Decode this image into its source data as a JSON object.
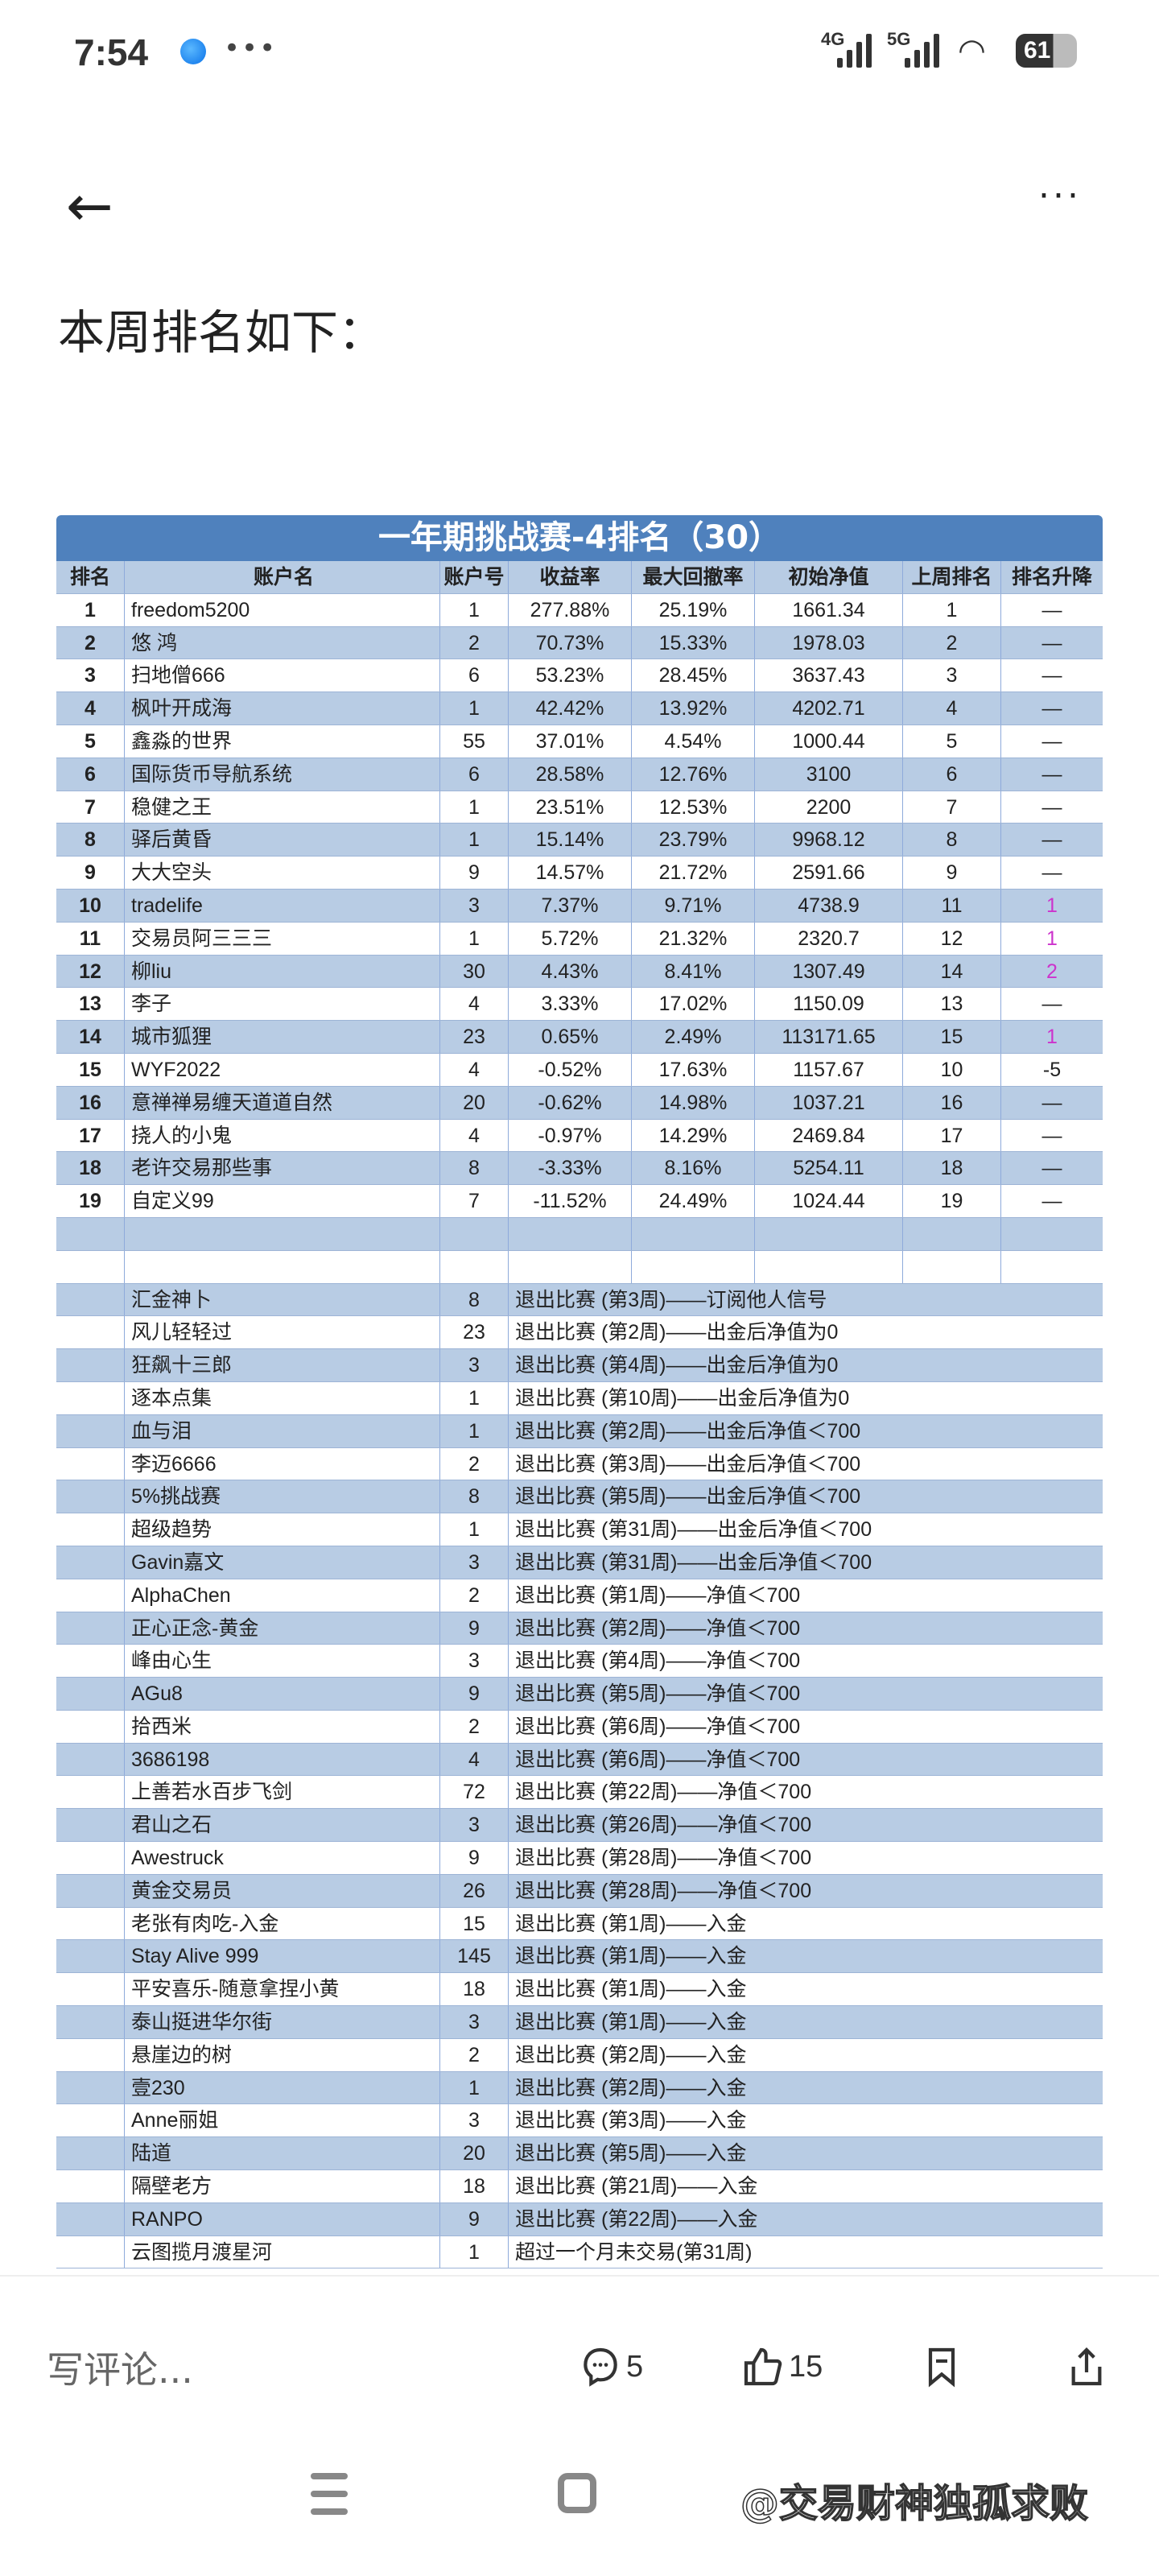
{
  "status_bar": {
    "time": "7:54",
    "sig1": "4G",
    "sig2": "5G",
    "battery": "61"
  },
  "heading": "本周排名如下：",
  "table": {
    "title": "一年期挑战赛-4排名（30）",
    "headers": [
      "排名",
      "账户名",
      "账户号",
      "收益率",
      "最大回撤率",
      "初始净值",
      "上周排名",
      "排名升降"
    ],
    "rows": [
      [
        "1",
        "freedom5200",
        "1",
        "277.88%",
        "25.19%",
        "1661.34",
        "1",
        "—"
      ],
      [
        "2",
        "悠 鸿",
        "2",
        "70.73%",
        "15.33%",
        "1978.03",
        "2",
        "—"
      ],
      [
        "3",
        "扫地僧666",
        "6",
        "53.23%",
        "28.45%",
        "3637.43",
        "3",
        "—"
      ],
      [
        "4",
        "枫叶开成海",
        "1",
        "42.42%",
        "13.92%",
        "4202.71",
        "4",
        "—"
      ],
      [
        "5",
        "鑫淼的世界",
        "55",
        "37.01%",
        "4.54%",
        "1000.44",
        "5",
        "—"
      ],
      [
        "6",
        "国际货币导航系统",
        "6",
        "28.58%",
        "12.76%",
        "3100",
        "6",
        "—"
      ],
      [
        "7",
        "稳健之王",
        "1",
        "23.51%",
        "12.53%",
        "2200",
        "7",
        "—"
      ],
      [
        "8",
        "驿后黄昏",
        "1",
        "15.14%",
        "23.79%",
        "9968.12",
        "8",
        "—"
      ],
      [
        "9",
        "大大空头",
        "9",
        "14.57%",
        "21.72%",
        "2591.66",
        "9",
        "—"
      ],
      [
        "10",
        "tradelife",
        "3",
        "7.37%",
        "9.71%",
        "4738.9",
        "11",
        "1"
      ],
      [
        "11",
        "交易员阿三三三",
        "1",
        "5.72%",
        "21.32%",
        "2320.7",
        "12",
        "1"
      ],
      [
        "12",
        "柳liu",
        "30",
        "4.43%",
        "8.41%",
        "1307.49",
        "14",
        "2"
      ],
      [
        "13",
        "李子",
        "4",
        "3.33%",
        "17.02%",
        "1150.09",
        "13",
        "—"
      ],
      [
        "14",
        "城市狐狸",
        "23",
        "0.65%",
        "2.49%",
        "113171.65",
        "15",
        "1"
      ],
      [
        "15",
        "WYF2022",
        "4",
        "-0.52%",
        "17.63%",
        "1157.67",
        "10",
        "-5"
      ],
      [
        "16",
        "意禅禅易缠天道道自然",
        "20",
        "-0.62%",
        "14.98%",
        "1037.21",
        "16",
        "—"
      ],
      [
        "17",
        "挠人的小鬼",
        "4",
        "-0.97%",
        "14.29%",
        "2469.84",
        "17",
        "—"
      ],
      [
        "18",
        "老许交易那些事",
        "8",
        "-3.33%",
        "8.16%",
        "5254.11",
        "18",
        "—"
      ],
      [
        "19",
        "自定义99",
        "7",
        "-11.52%",
        "24.49%",
        "1024.44",
        "19",
        "—"
      ]
    ],
    "exited": [
      [
        "汇金神卜",
        "8",
        "退出比赛 (第3周)——订阅他人信号"
      ],
      [
        "风儿轻轻过",
        "23",
        "退出比赛 (第2周)——出金后净值为0"
      ],
      [
        "狂飙十三郎",
        "3",
        "退出比赛 (第4周)——出金后净值为0"
      ],
      [
        "逐本点集",
        "1",
        "退出比赛 (第10周)——出金后净值为0"
      ],
      [
        "血与泪",
        "1",
        "退出比赛 (第2周)——出金后净值＜700"
      ],
      [
        "李迈6666",
        "2",
        "退出比赛 (第3周)——出金后净值＜700"
      ],
      [
        "5%挑战赛",
        "8",
        "退出比赛 (第5周)——出金后净值＜700"
      ],
      [
        "超级趋势",
        "1",
        "退出比赛 (第31周)——出金后净值＜700"
      ],
      [
        "Gavin嘉文",
        "3",
        "退出比赛 (第31周)——出金后净值＜700"
      ],
      [
        "AlphaChen",
        "2",
        "退出比赛 (第1周)——净值＜700"
      ],
      [
        "正心正念-黄金",
        "9",
        "退出比赛 (第2周)——净值＜700"
      ],
      [
        "峰由心生",
        "3",
        "退出比赛 (第4周)——净值＜700"
      ],
      [
        "AGu8",
        "9",
        "退出比赛 (第5周)——净值＜700"
      ],
      [
        "拾西米",
        "2",
        "退出比赛 (第6周)——净值＜700"
      ],
      [
        "3686198",
        "4",
        "退出比赛 (第6周)——净值＜700"
      ],
      [
        "上善若水百步飞剑",
        "72",
        "退出比赛 (第22周)——净值＜700"
      ],
      [
        "君山之石",
        "3",
        "退出比赛 (第26周)——净值＜700"
      ],
      [
        "Awestruck",
        "9",
        "退出比赛 (第28周)——净值＜700"
      ],
      [
        "黄金交易员",
        "26",
        "退出比赛 (第28周)——净值＜700"
      ],
      [
        "老张有肉吃-入金",
        "15",
        "退出比赛 (第1周)——入金"
      ],
      [
        "Stay Alive 999",
        "145",
        "退出比赛 (第1周)——入金"
      ],
      [
        "平安喜乐-随意拿捏小黄",
        "18",
        "退出比赛 (第1周)——入金"
      ],
      [
        "泰山挺进华尔街",
        "3",
        "退出比赛 (第1周)——入金"
      ],
      [
        "悬崖边的树",
        "2",
        "退出比赛 (第2周)——入金"
      ],
      [
        "壹230",
        "1",
        "退出比赛 (第2周)——入金"
      ],
      [
        "Anne丽姐",
        "3",
        "退出比赛 (第3周)——入金"
      ],
      [
        "陆道",
        "20",
        "退出比赛 (第5周)——入金"
      ],
      [
        "隔壁老方",
        "18",
        "退出比赛 (第21周)——入金"
      ],
      [
        "RANPO",
        "9",
        "退出比赛 (第22周)——入金"
      ],
      [
        "云图揽月渡星河",
        "1",
        "超过一个月未交易(第31周)"
      ]
    ]
  },
  "comment_bar": {
    "placeholder": "写评论...",
    "comments": "5",
    "likes": "15"
  },
  "watermark": "@交易财神独孤求败",
  "colors": {
    "title_bg": "#4f81bd",
    "row_blue": "#b8cce4",
    "rank_up": "#cc33cc"
  }
}
